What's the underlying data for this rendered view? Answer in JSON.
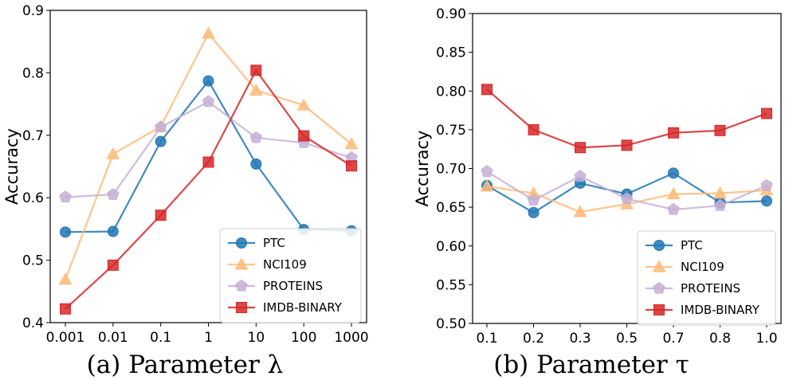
{
  "chart_data": [
    {
      "type": "line",
      "caption": "(a) Parameter λ",
      "ylabel": "Accuracy",
      "xlabel": "",
      "categories": [
        "0.001",
        "0.01",
        "0.1",
        "1",
        "10",
        "100",
        "1000"
      ],
      "ylim": [
        0.4,
        0.9
      ],
      "yticks": [
        "0.4",
        "0.5",
        "0.6",
        "0.7",
        "0.8",
        "0.9"
      ],
      "grid": false,
      "legend": "lower-right",
      "series": [
        {
          "name": "PTC",
          "color": "#1f77b4",
          "marker": "circle",
          "values": [
            0.545,
            0.546,
            0.69,
            0.787,
            0.654,
            0.549,
            0.547
          ]
        },
        {
          "name": "NCI109",
          "color": "#ffbb78",
          "marker": "triangle",
          "values": [
            0.469,
            0.67,
            0.714,
            0.863,
            0.772,
            0.748,
            0.686
          ]
        },
        {
          "name": "PROTEINS",
          "color": "#c5b0d5",
          "marker": "pentagon",
          "values": [
            0.601,
            0.605,
            0.713,
            0.754,
            0.696,
            0.688,
            0.664
          ]
        },
        {
          "name": "IMDB-BINARY",
          "color": "#d62728",
          "marker": "square",
          "values": [
            0.422,
            0.492,
            0.572,
            0.657,
            0.804,
            0.699,
            0.651
          ]
        }
      ]
    },
    {
      "type": "line",
      "caption": "(b) Parameter τ",
      "ylabel": "Accuracy",
      "xlabel": "",
      "categories": [
        "0.1",
        "0.2",
        "0.3",
        "0.5",
        "0.7",
        "0.8",
        "1.0"
      ],
      "ylim": [
        0.5,
        0.9
      ],
      "yticks": [
        "0.50",
        "0.55",
        "0.60",
        "0.65",
        "0.70",
        "0.75",
        "0.80",
        "0.85",
        "0.90"
      ],
      "grid": false,
      "legend": "lower-right",
      "series": [
        {
          "name": "PTC",
          "color": "#1f77b4",
          "marker": "circle",
          "values": [
            0.678,
            0.643,
            0.681,
            0.667,
            0.694,
            0.656,
            0.658
          ]
        },
        {
          "name": "NCI109",
          "color": "#ffbb78",
          "marker": "triangle",
          "values": [
            0.677,
            0.668,
            0.644,
            0.654,
            0.667,
            0.668,
            0.672
          ]
        },
        {
          "name": "PROTEINS",
          "color": "#c5b0d5",
          "marker": "pentagon",
          "values": [
            0.696,
            0.659,
            0.69,
            0.661,
            0.647,
            0.652,
            0.678
          ]
        },
        {
          "name": "IMDB-BINARY",
          "color": "#d62728",
          "marker": "square",
          "values": [
            0.802,
            0.75,
            0.727,
            0.73,
            0.746,
            0.749,
            0.771
          ]
        }
      ]
    }
  ]
}
